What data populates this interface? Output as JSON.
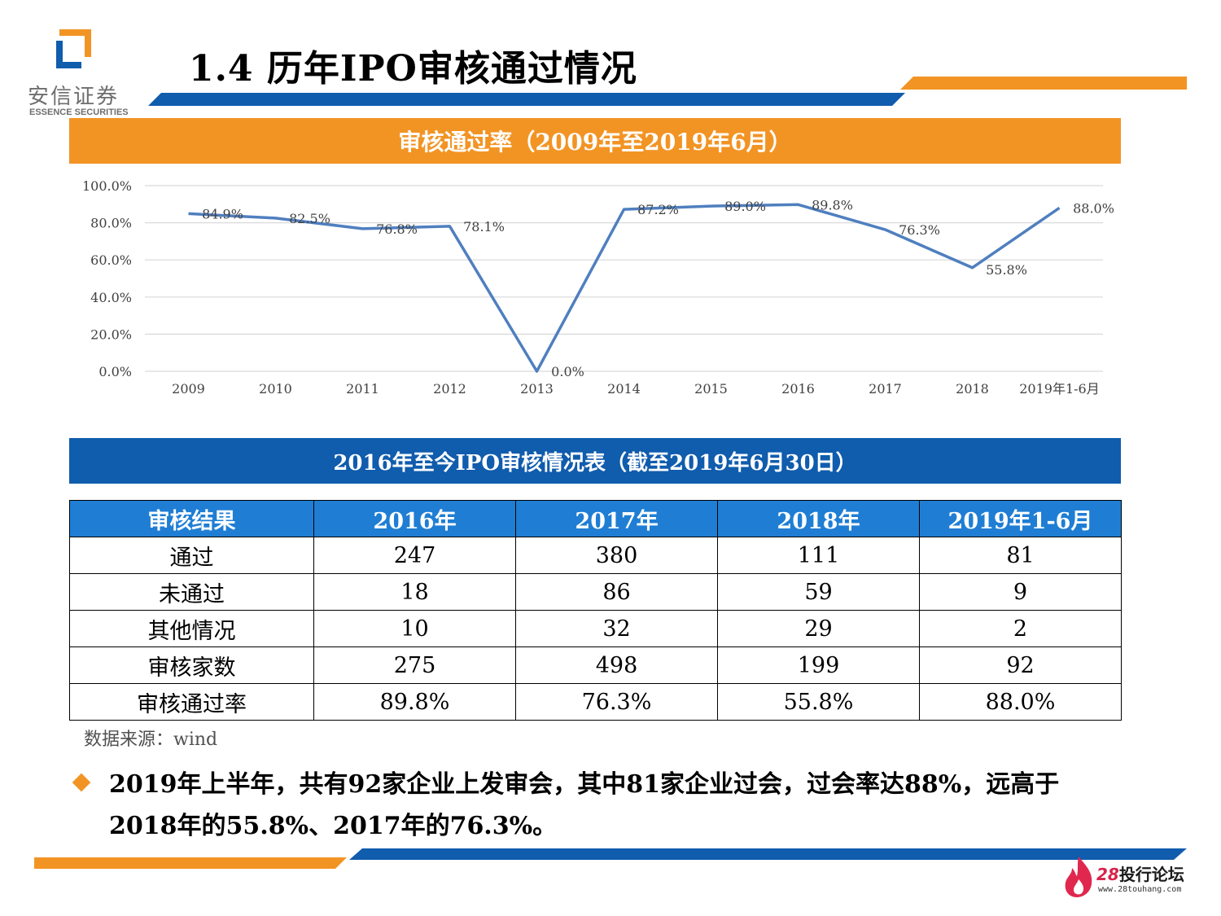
{
  "header": {
    "title": "1.4 历年IPO审核通过情况",
    "logo_cn": "安信证券",
    "logo_en": "ESSENCE SECURITIES"
  },
  "colors": {
    "orange": "#f29424",
    "blue": "#105cad",
    "header_blue": "#1f7ed4",
    "line": "#4f7fbf"
  },
  "chart_banner": "审核通过率（2009年至2019年6月）",
  "chart_data": {
    "type": "line",
    "title": "审核通过率（2009年至2019年6月）",
    "categories": [
      "2009",
      "2010",
      "2011",
      "2012",
      "2013",
      "2014",
      "2015",
      "2016",
      "2017",
      "2018",
      "2019年1-6月"
    ],
    "series": [
      {
        "values": [
          84.9,
          82.5,
          76.8,
          78.1,
          0.0,
          87.2,
          89.0,
          89.8,
          76.3,
          55.8,
          88.0
        ]
      }
    ],
    "data_labels": [
      "84.9%",
      "82.5%",
      "76.8%",
      "78.1%",
      "0.0%",
      "87.2%",
      "89.0%",
      "89.8%",
      "76.3%",
      "55.8%",
      "88.0%"
    ],
    "y_ticks": [
      "0.0%",
      "20.0%",
      "40.0%",
      "60.0%",
      "80.0%",
      "100.0%"
    ],
    "ylim": [
      0,
      100
    ],
    "grid": true
  },
  "table_banner": "2016年至今IPO审核情况表（截至2019年6月30日）",
  "table": {
    "headers": [
      "审核结果",
      "2016年",
      "2017年",
      "2018年",
      "2019年1-6月"
    ],
    "rows": [
      [
        "通过",
        "247",
        "380",
        "111",
        "81"
      ],
      [
        "未通过",
        "18",
        "86",
        "59",
        "9"
      ],
      [
        "其他情况",
        "10",
        "32",
        "29",
        "2"
      ],
      [
        "审核家数",
        "275",
        "498",
        "199",
        "92"
      ],
      [
        "审核通过率",
        "89.8%",
        "76.3%",
        "55.8%",
        "88.0%"
      ]
    ]
  },
  "source": "数据来源：wind",
  "bullet": "2019年上半年，共有92家企业上发审会，其中81家企业过会，过会率达88%，远高于2018年的55.8%、2017年的76.3%。",
  "forum": {
    "number": "28",
    "name": "投行论坛",
    "url": "www.28touhang.com"
  }
}
